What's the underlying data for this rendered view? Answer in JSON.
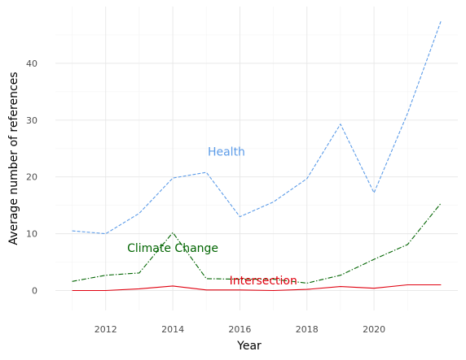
{
  "chart_data": {
    "type": "line",
    "title": "",
    "xlabel": "Year",
    "ylabel": "Average number of references",
    "xlim": [
      2010.5,
      2022.5
    ],
    "ylim": [
      -3.5,
      50
    ],
    "x_ticks": [
      2012,
      2014,
      2016,
      2018,
      2020
    ],
    "x_tick_labels": [
      "2012",
      "2014",
      "2016",
      "2018",
      "2020"
    ],
    "y_ticks": [
      0,
      10,
      20,
      30,
      40
    ],
    "y_tick_labels": [
      "0",
      "10",
      "20",
      "30",
      "40"
    ],
    "grid": true,
    "legend": "none",
    "x": [
      2011,
      2012,
      2013,
      2014,
      2015,
      2016,
      2017,
      2018,
      2019,
      2020,
      2021,
      2022
    ],
    "series": [
      {
        "name": "Health",
        "color": "#5B9BE8",
        "line_style": "dashed",
        "values": [
          10.5,
          10.0,
          13.6,
          19.8,
          20.8,
          13.0,
          15.6,
          19.7,
          29.3,
          17.2,
          31.2,
          47.5
        ],
        "label_at": [
          2015.6,
          24.5
        ]
      },
      {
        "name": "Climate Change",
        "color": "#006400",
        "line_style": "dashdot",
        "values": [
          1.6,
          2.7,
          3.1,
          10.2,
          2.1,
          2.0,
          2.0,
          1.3,
          2.7,
          5.5,
          8.1,
          15.4
        ],
        "label_at": [
          2014.0,
          7.5
        ]
      },
      {
        "name": "Intersection",
        "color": "#E0000F",
        "line_style": "solid",
        "values": [
          0.0,
          0.0,
          0.3,
          0.8,
          0.1,
          0.1,
          0.0,
          0.2,
          0.7,
          0.4,
          1.0,
          1.0
        ],
        "label_at": [
          2016.7,
          1.8
        ]
      }
    ]
  }
}
